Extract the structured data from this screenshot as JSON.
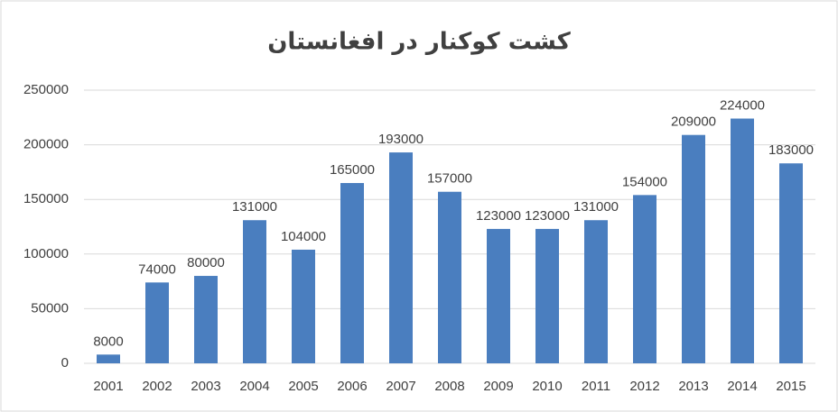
{
  "chart_data": {
    "type": "bar",
    "title": "کشت کوکنار در افغانستان",
    "categories": [
      "2001",
      "2002",
      "2003",
      "2004",
      "2005",
      "2006",
      "2007",
      "2008",
      "2009",
      "2010",
      "2011",
      "2012",
      "2013",
      "2014",
      "2015"
    ],
    "values": [
      8000,
      74000,
      80000,
      131000,
      104000,
      165000,
      193000,
      157000,
      123000,
      123000,
      131000,
      154000,
      209000,
      224000,
      183000
    ],
    "color": "#4a7ebf",
    "ylim": [
      0,
      250000
    ],
    "yticks": [
      0,
      50000,
      100000,
      150000,
      200000,
      250000
    ],
    "grid": true
  }
}
